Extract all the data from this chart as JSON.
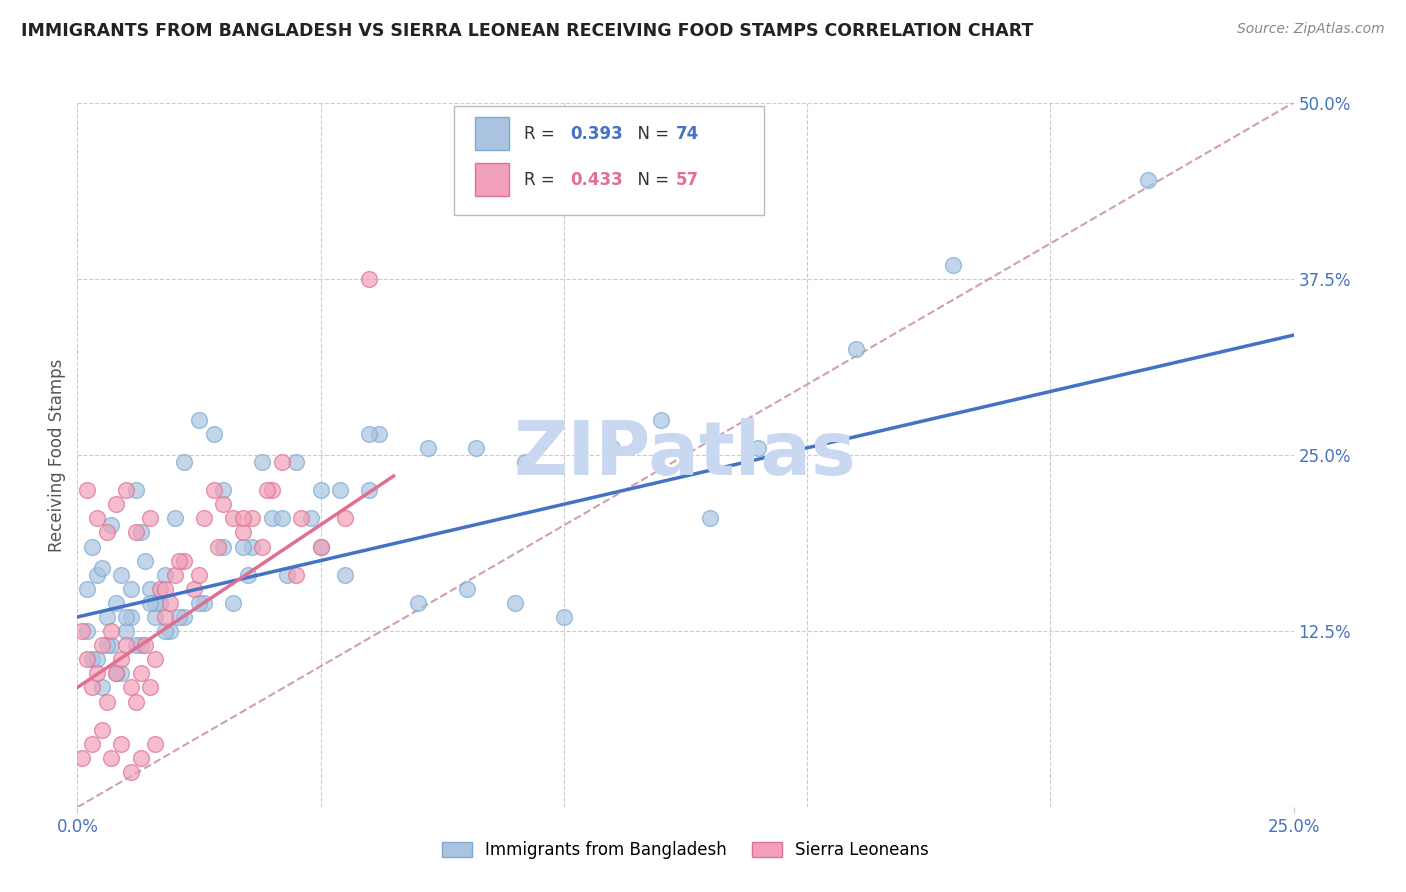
{
  "title": "IMMIGRANTS FROM BANGLADESH VS SIERRA LEONEAN RECEIVING FOOD STAMPS CORRELATION CHART",
  "source": "Source: ZipAtlas.com",
  "ylabel": "Receiving Food Stamps",
  "xlim": [
    0.0,
    0.25
  ],
  "ylim": [
    0.0,
    0.5
  ],
  "ytick_labels_right": [
    "12.5%",
    "25.0%",
    "37.5%",
    "50.0%"
  ],
  "ytick_values_right": [
    0.125,
    0.25,
    0.375,
    0.5
  ],
  "watermark": "ZIPatlas",
  "watermark_color": "#c8d8f0",
  "background_color": "#ffffff",
  "grid_color": "#cccccc",
  "title_color": "#222222",
  "axis_label_color": "#555555",
  "right_tick_color": "#4472c4",
  "scatter_blue_color": "#aac4e0",
  "scatter_blue_edge": "#7aaad4",
  "scatter_pink_color": "#f0a0b8",
  "scatter_pink_edge": "#e07090",
  "line_blue_color": "#4472c4",
  "line_pink_color": "#e07090",
  "diag_color": "#d0a0b0",
  "blue_line_x0": 0.0,
  "blue_line_y0": 0.135,
  "blue_line_x1": 0.25,
  "blue_line_y1": 0.335,
  "pink_line_x0": 0.0,
  "pink_line_y0": 0.085,
  "pink_line_x1": 0.065,
  "pink_line_y1": 0.235,
  "bangladesh_x": [
    0.002,
    0.003,
    0.004,
    0.005,
    0.006,
    0.007,
    0.008,
    0.009,
    0.01,
    0.011,
    0.012,
    0.013,
    0.014,
    0.015,
    0.016,
    0.017,
    0.018,
    0.02,
    0.022,
    0.025,
    0.028,
    0.032,
    0.036,
    0.04,
    0.045,
    0.05,
    0.055,
    0.06,
    0.07,
    0.08,
    0.09,
    0.1,
    0.12,
    0.14,
    0.18,
    0.22,
    0.003,
    0.005,
    0.007,
    0.009,
    0.011,
    0.013,
    0.016,
    0.019,
    0.022,
    0.026,
    0.03,
    0.034,
    0.038,
    0.043,
    0.048,
    0.054,
    0.062,
    0.072,
    0.082,
    0.092,
    0.11,
    0.13,
    0.16,
    0.002,
    0.004,
    0.006,
    0.008,
    0.01,
    0.012,
    0.015,
    0.018,
    0.021,
    0.025,
    0.03,
    0.035,
    0.042,
    0.05,
    0.06
  ],
  "bangladesh_y": [
    0.155,
    0.185,
    0.165,
    0.17,
    0.135,
    0.2,
    0.145,
    0.165,
    0.125,
    0.155,
    0.225,
    0.195,
    0.175,
    0.155,
    0.135,
    0.145,
    0.165,
    0.205,
    0.245,
    0.275,
    0.265,
    0.145,
    0.185,
    0.205,
    0.245,
    0.185,
    0.165,
    0.225,
    0.145,
    0.155,
    0.145,
    0.135,
    0.275,
    0.255,
    0.385,
    0.445,
    0.105,
    0.085,
    0.115,
    0.095,
    0.135,
    0.115,
    0.145,
    0.125,
    0.135,
    0.145,
    0.225,
    0.185,
    0.245,
    0.165,
    0.205,
    0.225,
    0.265,
    0.255,
    0.255,
    0.245,
    0.255,
    0.205,
    0.325,
    0.125,
    0.105,
    0.115,
    0.095,
    0.135,
    0.115,
    0.145,
    0.125,
    0.135,
    0.145,
    0.185,
    0.165,
    0.205,
    0.225,
    0.265
  ],
  "sierraleone_x": [
    0.001,
    0.002,
    0.003,
    0.004,
    0.005,
    0.006,
    0.007,
    0.008,
    0.009,
    0.01,
    0.011,
    0.012,
    0.013,
    0.014,
    0.015,
    0.016,
    0.017,
    0.018,
    0.019,
    0.02,
    0.022,
    0.024,
    0.026,
    0.028,
    0.03,
    0.032,
    0.034,
    0.036,
    0.038,
    0.04,
    0.042,
    0.046,
    0.05,
    0.055,
    0.06,
    0.002,
    0.004,
    0.006,
    0.008,
    0.01,
    0.012,
    0.015,
    0.018,
    0.021,
    0.025,
    0.029,
    0.034,
    0.039,
    0.045,
    0.001,
    0.003,
    0.005,
    0.007,
    0.009,
    0.011,
    0.013,
    0.016
  ],
  "sierraleone_y": [
    0.125,
    0.105,
    0.085,
    0.095,
    0.115,
    0.075,
    0.125,
    0.095,
    0.105,
    0.115,
    0.085,
    0.075,
    0.095,
    0.115,
    0.085,
    0.105,
    0.155,
    0.135,
    0.145,
    0.165,
    0.175,
    0.155,
    0.205,
    0.225,
    0.215,
    0.205,
    0.195,
    0.205,
    0.185,
    0.225,
    0.245,
    0.205,
    0.185,
    0.205,
    0.375,
    0.225,
    0.205,
    0.195,
    0.215,
    0.225,
    0.195,
    0.205,
    0.155,
    0.175,
    0.165,
    0.185,
    0.205,
    0.225,
    0.165,
    0.035,
    0.045,
    0.055,
    0.035,
    0.045,
    0.025,
    0.035,
    0.045
  ]
}
